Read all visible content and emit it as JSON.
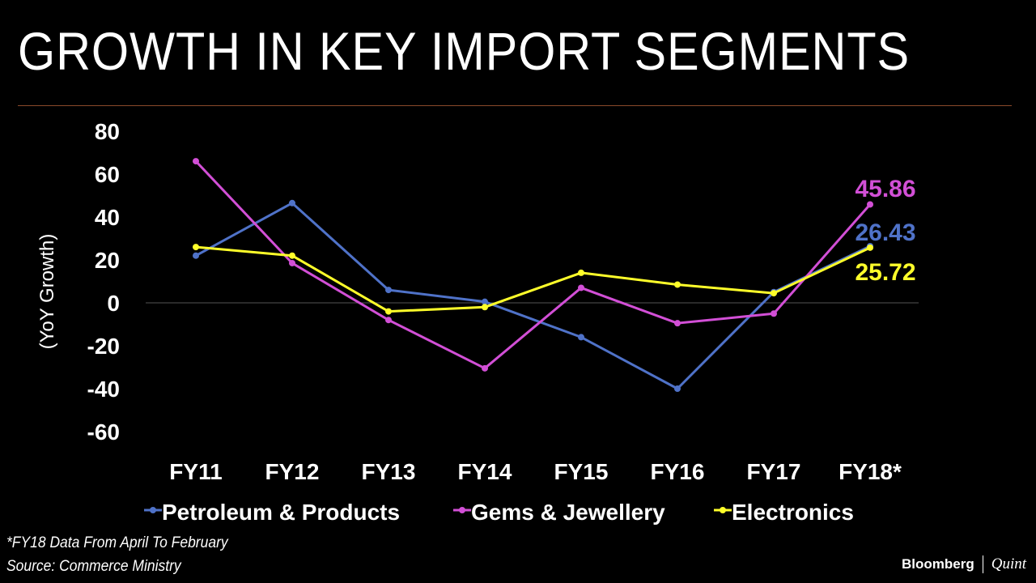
{
  "header": {
    "title": "GROWTH IN KEY IMPORT SEGMENTS"
  },
  "chart_data": {
    "type": "line",
    "title": "GROWTH IN KEY IMPORT SEGMENTS",
    "ylabel": "(YoY Growth)",
    "xlabel": "",
    "categories": [
      "FY11",
      "FY12",
      "FY13",
      "FY14",
      "FY15",
      "FY16",
      "FY17",
      "FY18*"
    ],
    "ylim": [
      -60,
      80
    ],
    "yticks": [
      "80",
      "60",
      "40",
      "20",
      "0",
      "-20",
      "-40",
      "-60"
    ],
    "ytick_values": [
      80,
      60,
      40,
      20,
      0,
      -20,
      -40,
      -60
    ],
    "grid": false,
    "legend_position": "bottom",
    "series": [
      {
        "name": "Petroleum & Products",
        "color": "#4f72c8",
        "values": [
          22,
          46.5,
          6,
          0.5,
          -16,
          -40,
          5,
          26.43
        ],
        "end_label": "26.43"
      },
      {
        "name": "Gems & Jewellery",
        "color": "#d24fd6",
        "values": [
          66,
          18.5,
          -8,
          -30.5,
          7,
          -9.5,
          -5,
          45.86
        ],
        "end_label": "45.86"
      },
      {
        "name": "Electronics",
        "color": "#ffff2a",
        "values": [
          26,
          22,
          -4,
          -2,
          14,
          8.5,
          4.5,
          25.72
        ],
        "end_label": "25.72"
      }
    ]
  },
  "footer": {
    "note": "*FY18 Data From April To February",
    "source": "Source: Commerce Ministry",
    "brand_primary": "Bloomberg",
    "brand_secondary": "Quint"
  }
}
